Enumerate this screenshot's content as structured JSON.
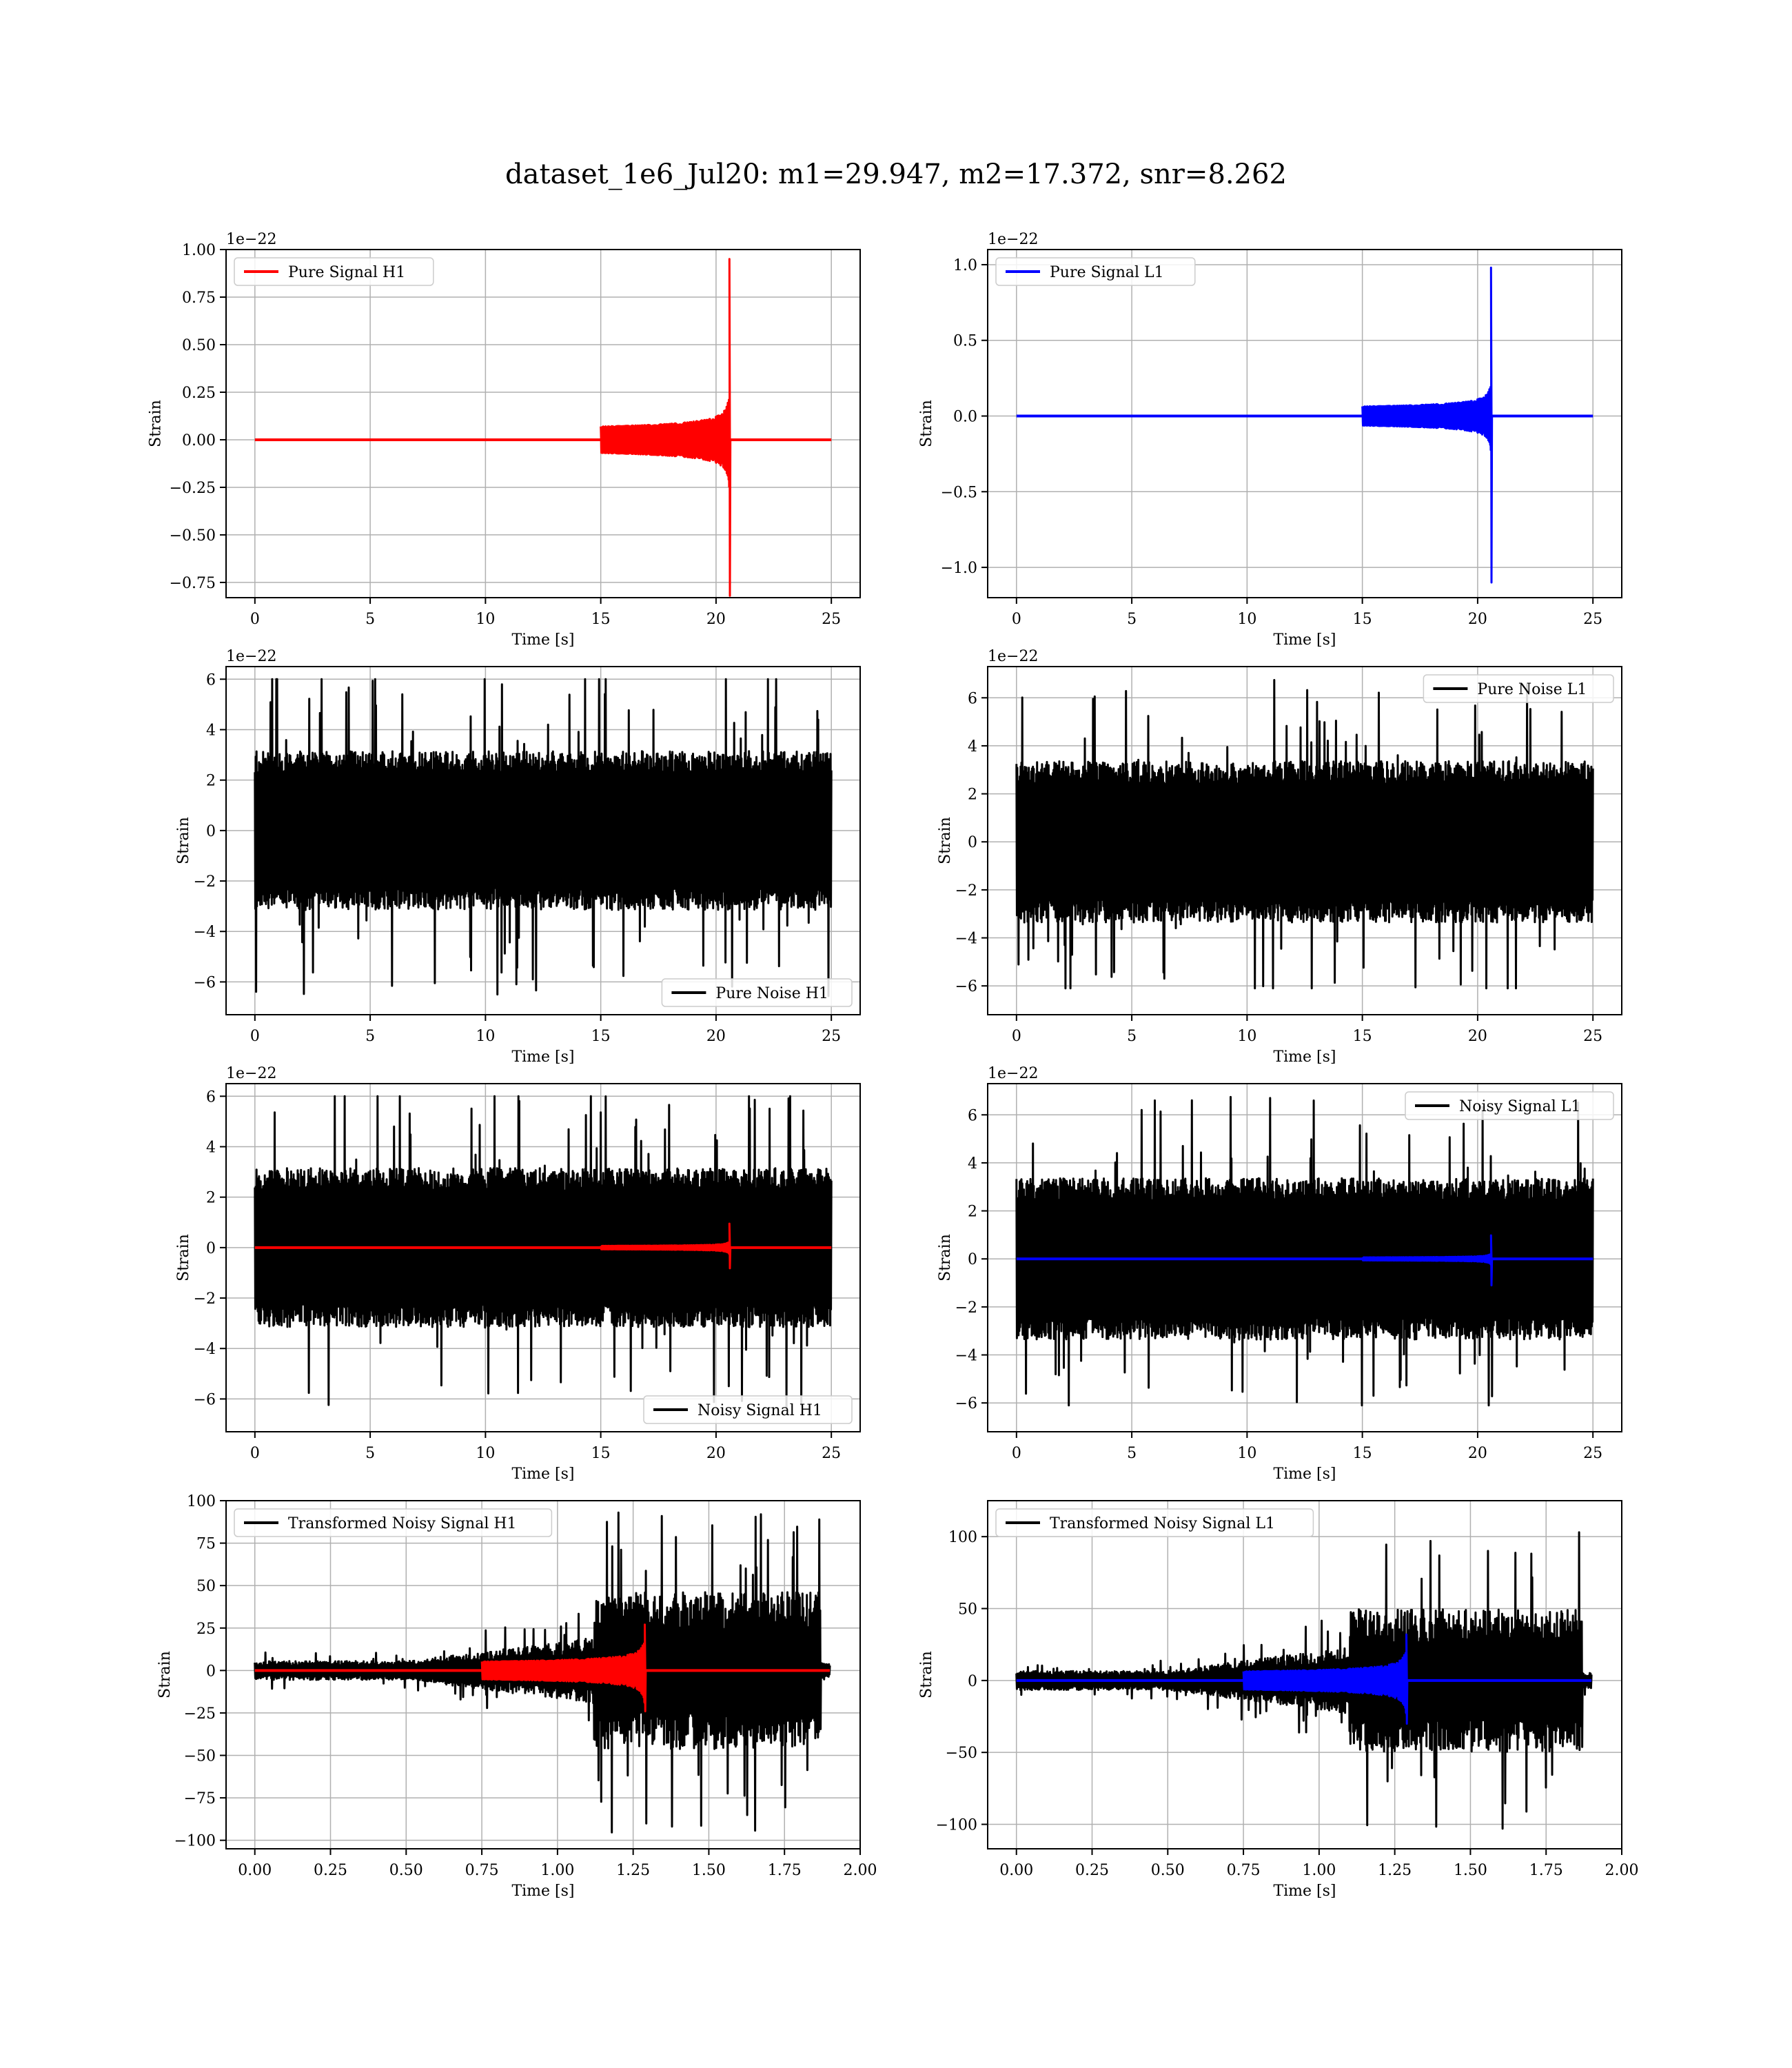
{
  "figure": {
    "title": "dataset_1e6_Jul20: m1=29.947, m2=17.372, snr=8.262",
    "colors": {
      "h1": "#ff0000",
      "l1": "#0000ff",
      "noise": "#000000",
      "grid": "#b0b0b0"
    }
  },
  "chart_data": [
    {
      "type": "line",
      "title": "",
      "xlabel": "Time [s]",
      "ylabel": "Strain",
      "xlim": [
        -1.25,
        26.25
      ],
      "ylim": [
        -0.83,
        1.0
      ],
      "y_offset_text": "1e−22",
      "x_ticks": [
        "0",
        "5",
        "10",
        "15",
        "20",
        "25"
      ],
      "x_tick_values": [
        0,
        5,
        10,
        15,
        20,
        25
      ],
      "y_ticks": [
        "−0.75",
        "−0.50",
        "−0.25",
        "0.00",
        "0.25",
        "0.50",
        "0.75",
        "1.00"
      ],
      "y_tick_values": [
        -0.75,
        -0.5,
        -0.25,
        0,
        0.25,
        0.5,
        0.75,
        1.0
      ],
      "grid": true,
      "legend_position": "upper-left",
      "series": [
        {
          "name": "Pure Signal H1",
          "color": "#ff0000",
          "kind": "chirp",
          "x_start": 0,
          "x_end": 25,
          "merger_time": 20.6,
          "onset_time": 15.0,
          "inspiral_amp": 0.33,
          "peak_pos": 0.95,
          "peak_neg": -0.82
        }
      ]
    },
    {
      "type": "line",
      "title": "",
      "xlabel": "Time [s]",
      "ylabel": "Strain",
      "xlim": [
        -1.25,
        26.25
      ],
      "ylim": [
        -1.2,
        1.1
      ],
      "y_offset_text": "1e−22",
      "x_ticks": [
        "0",
        "5",
        "10",
        "15",
        "20",
        "25"
      ],
      "x_tick_values": [
        0,
        5,
        10,
        15,
        20,
        25
      ],
      "y_ticks": [
        "−1.0",
        "−0.5",
        "0.0",
        "0.5",
        "1.0"
      ],
      "y_tick_values": [
        -1.0,
        -0.5,
        0,
        0.5,
        1.0
      ],
      "grid": true,
      "legend_position": "upper-left",
      "series": [
        {
          "name": "Pure Signal L1",
          "color": "#0000ff",
          "kind": "chirp",
          "x_start": 0,
          "x_end": 25,
          "merger_time": 20.6,
          "onset_time": 15.0,
          "inspiral_amp": 0.3,
          "peak_pos": 0.98,
          "peak_neg": -1.1
        }
      ]
    },
    {
      "type": "line",
      "title": "",
      "xlabel": "Time [s]",
      "ylabel": "Strain",
      "xlim": [
        -1.25,
        26.25
      ],
      "ylim": [
        -7.3,
        6.5
      ],
      "y_offset_text": "1e−22",
      "x_ticks": [
        "0",
        "5",
        "10",
        "15",
        "20",
        "25"
      ],
      "x_tick_values": [
        0,
        5,
        10,
        15,
        20,
        25
      ],
      "y_ticks": [
        "−6",
        "−4",
        "−2",
        "0",
        "2",
        "4",
        "6"
      ],
      "y_tick_values": [
        -6,
        -4,
        -2,
        0,
        2,
        4,
        6
      ],
      "grid": true,
      "legend_position": "lower-right",
      "series": [
        {
          "name": "Pure Noise H1",
          "color": "#000000",
          "kind": "noise",
          "x_start": 0,
          "x_end": 25,
          "core_amp": 3.0,
          "max_pos": 6.0,
          "max_neg": -6.6
        }
      ]
    },
    {
      "type": "line",
      "title": "",
      "xlabel": "Time [s]",
      "ylabel": "Strain",
      "xlim": [
        -1.25,
        26.25
      ],
      "ylim": [
        -7.2,
        7.3
      ],
      "y_offset_text": "1e−22",
      "x_ticks": [
        "0",
        "5",
        "10",
        "15",
        "20",
        "25"
      ],
      "x_tick_values": [
        0,
        5,
        10,
        15,
        20,
        25
      ],
      "y_ticks": [
        "−6",
        "−4",
        "−2",
        "0",
        "2",
        "4",
        "6"
      ],
      "y_tick_values": [
        -6,
        -4,
        -2,
        0,
        2,
        4,
        6
      ],
      "grid": true,
      "legend_position": "upper-right",
      "series": [
        {
          "name": "Pure Noise L1",
          "color": "#000000",
          "kind": "noise",
          "x_start": 0,
          "x_end": 25,
          "core_amp": 3.2,
          "max_pos": 6.8,
          "max_neg": -6.1
        }
      ]
    },
    {
      "type": "line",
      "title": "",
      "xlabel": "Time [s]",
      "ylabel": "Strain",
      "xlim": [
        -1.25,
        26.25
      ],
      "ylim": [
        -7.3,
        6.5
      ],
      "y_offset_text": "1e−22",
      "x_ticks": [
        "0",
        "5",
        "10",
        "15",
        "20",
        "25"
      ],
      "x_tick_values": [
        0,
        5,
        10,
        15,
        20,
        25
      ],
      "y_ticks": [
        "−6",
        "−4",
        "−2",
        "0",
        "2",
        "4",
        "6"
      ],
      "y_tick_values": [
        -6,
        -4,
        -2,
        0,
        2,
        4,
        6
      ],
      "grid": true,
      "legend_position": "lower-right",
      "series": [
        {
          "name": "Noisy Signal H1",
          "color": "#000000",
          "kind": "noise",
          "x_start": 0,
          "x_end": 25,
          "core_amp": 3.0,
          "max_pos": 6.0,
          "max_neg": -6.6
        },
        {
          "name": "",
          "color": "#ff0000",
          "kind": "chirp",
          "x_start": 0,
          "x_end": 25,
          "merger_time": 20.6,
          "onset_time": 15.0,
          "inspiral_amp": 0.33,
          "peak_pos": 0.95,
          "peak_neg": -0.82
        }
      ]
    },
    {
      "type": "line",
      "title": "",
      "xlabel": "Time [s]",
      "ylabel": "Strain",
      "xlim": [
        -1.25,
        26.25
      ],
      "ylim": [
        -7.2,
        7.3
      ],
      "y_offset_text": "1e−22",
      "x_ticks": [
        "0",
        "5",
        "10",
        "15",
        "20",
        "25"
      ],
      "x_tick_values": [
        0,
        5,
        10,
        15,
        20,
        25
      ],
      "y_ticks": [
        "−6",
        "−4",
        "−2",
        "0",
        "2",
        "4",
        "6"
      ],
      "y_tick_values": [
        -6,
        -4,
        -2,
        0,
        2,
        4,
        6
      ],
      "grid": true,
      "legend_position": "upper-right",
      "series": [
        {
          "name": "Noisy Signal L1",
          "color": "#000000",
          "kind": "noise",
          "x_start": 0,
          "x_end": 25,
          "core_amp": 3.2,
          "max_pos": 6.8,
          "max_neg": -6.1
        },
        {
          "name": "",
          "color": "#0000ff",
          "kind": "chirp",
          "x_start": 0,
          "x_end": 25,
          "merger_time": 20.6,
          "onset_time": 15.0,
          "inspiral_amp": 0.3,
          "peak_pos": 0.98,
          "peak_neg": -1.1
        }
      ]
    },
    {
      "type": "line",
      "title": "",
      "xlabel": "Time [s]",
      "ylabel": "Strain",
      "xlim": [
        -0.095,
        2.0
      ],
      "ylim": [
        -105,
        100
      ],
      "y_offset_text": "",
      "x_ticks": [
        "0.00",
        "0.25",
        "0.50",
        "0.75",
        "1.00",
        "1.25",
        "1.50",
        "1.75",
        "2.00"
      ],
      "x_tick_values": [
        0,
        0.25,
        0.5,
        0.75,
        1.0,
        1.25,
        1.5,
        1.75,
        2.0
      ],
      "y_ticks": [
        "−100",
        "−75",
        "−50",
        "−25",
        "0",
        "25",
        "50",
        "75",
        "100"
      ],
      "y_tick_values": [
        -100,
        -75,
        -50,
        -25,
        0,
        25,
        50,
        75,
        100
      ],
      "grid": true,
      "legend_position": "upper-left",
      "series": [
        {
          "name": "Transformed Noisy Signal H1",
          "color": "#000000",
          "kind": "tnoise",
          "x_start": 0,
          "x_end": 1.9,
          "growth_start": 0.5,
          "jump_time": 1.12,
          "burst_end": 1.87,
          "low_amp": 5,
          "high_amp": 42,
          "max_pos": 93,
          "max_neg": -97
        },
        {
          "name": "",
          "color": "#ff0000",
          "kind": "chirp",
          "x_start": 0,
          "x_end": 1.9,
          "merger_time": 1.29,
          "onset_time": 0.75,
          "inspiral_amp": 25,
          "peak_pos": 27,
          "peak_neg": -24
        }
      ]
    },
    {
      "type": "line",
      "title": "",
      "xlabel": "Time [s]",
      "ylabel": "Strain",
      "xlim": [
        -0.095,
        2.0
      ],
      "ylim": [
        -117,
        125
      ],
      "y_offset_text": "",
      "x_ticks": [
        "0.00",
        "0.25",
        "0.50",
        "0.75",
        "1.00",
        "1.25",
        "1.50",
        "1.75",
        "2.00"
      ],
      "x_tick_values": [
        0,
        0.25,
        0.5,
        0.75,
        1.0,
        1.25,
        1.5,
        1.75,
        2.0
      ],
      "y_ticks": [
        "−100",
        "−50",
        "0",
        "50",
        "100"
      ],
      "y_tick_values": [
        -100,
        -50,
        0,
        50,
        100
      ],
      "grid": true,
      "legend_position": "upper-left",
      "series": [
        {
          "name": "Transformed Noisy Signal L1",
          "color": "#000000",
          "kind": "tnoise",
          "x_start": 0,
          "x_end": 1.9,
          "growth_start": 0.5,
          "jump_time": 1.1,
          "burst_end": 1.87,
          "low_amp": 6,
          "high_amp": 45,
          "max_pos": 113,
          "max_neg": -106
        },
        {
          "name": "",
          "color": "#0000ff",
          "kind": "chirp",
          "x_start": 0,
          "x_end": 1.9,
          "merger_time": 1.29,
          "onset_time": 0.75,
          "inspiral_amp": 30,
          "peak_pos": 32,
          "peak_neg": -30
        }
      ]
    }
  ]
}
